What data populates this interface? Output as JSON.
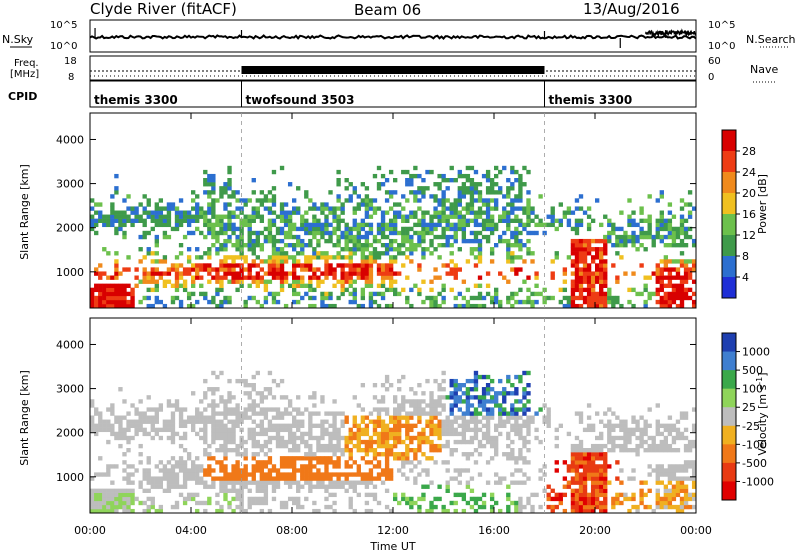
{
  "header": {
    "station": "Clyde River (fitACF)",
    "beam": "Beam 06",
    "date": "13/Aug/2016"
  },
  "noise_panel": {
    "left_label": "N.Sky",
    "right_label": "N.Search",
    "tick_top_left": "10^5",
    "tick_bottom_left": "10^0",
    "tick_top_right": "10^5",
    "tick_bottom_right": "10^0"
  },
  "freq_panel": {
    "label_line1": "Freq.",
    "label_line2": "[MHz]",
    "right_label": "Nave",
    "tick_left_top": "18",
    "tick_left_bottom": "8",
    "tick_right_top": "60",
    "tick_right_bottom": "0"
  },
  "cpid_panel": {
    "label": "CPID",
    "segments": [
      {
        "label": "themis 3300",
        "start_hour": 0
      },
      {
        "label": "twofsound 3503",
        "start_hour": 6
      },
      {
        "label": "themis 3300",
        "start_hour": 18
      }
    ]
  },
  "chart_data": [
    {
      "type": "heatmap",
      "name": "power",
      "ylabel": "Slant Range [km]",
      "xlim": [
        0,
        24
      ],
      "ylim": [
        180,
        4600
      ],
      "yticks": [
        "1000",
        "2000",
        "3000",
        "4000"
      ],
      "colorbar": {
        "label": "Power [dB]",
        "ticks": [
          "4",
          "8",
          "12",
          "16",
          "20",
          "24",
          "28"
        ],
        "colors": [
          "#1f2fd6",
          "#2c6fd0",
          "#3f9a4a",
          "#6cc04c",
          "#f0c020",
          "#f08a1c",
          "#ee3c14",
          "#d80000"
        ]
      }
    },
    {
      "type": "heatmap",
      "name": "velocity",
      "ylabel": "Slant Range [km]",
      "xlabel": "Time UT",
      "xlim": [
        0,
        24
      ],
      "ylim": [
        180,
        4600
      ],
      "yticks": [
        "1000",
        "2000",
        "3000",
        "4000"
      ],
      "xticks": [
        "00:00",
        "04:00",
        "08:00",
        "12:00",
        "16:00",
        "20:00",
        "00:00"
      ],
      "colorbar": {
        "label": "Velocity [m s^-1]",
        "ticks": [
          "1000",
          "500",
          "100",
          "25",
          "-25",
          "-100",
          "-500",
          "-1000"
        ],
        "colors": [
          "#1e3fb0",
          "#3f7fd0",
          "#3aa84a",
          "#8fd45a",
          "#bdbdbd",
          "#f0b020",
          "#f07818",
          "#e83a12",
          "#e00000"
        ]
      }
    }
  ]
}
